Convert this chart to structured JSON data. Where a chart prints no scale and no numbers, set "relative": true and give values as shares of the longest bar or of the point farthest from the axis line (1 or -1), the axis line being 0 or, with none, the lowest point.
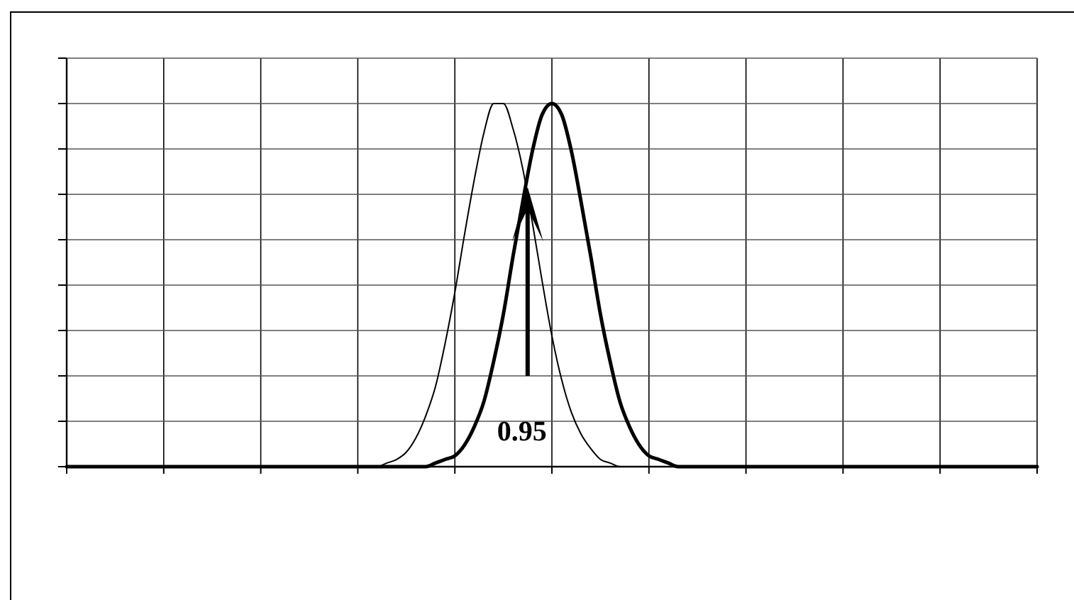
{
  "chart_data": {
    "type": "line",
    "relative": true,
    "grid": true,
    "categories": [
      null,
      null,
      null,
      null,
      null,
      null,
      null,
      null,
      null,
      null,
      null,
      null,
      null,
      null,
      null,
      null,
      null,
      null,
      null,
      null,
      null,
      null,
      null,
      null,
      null,
      null,
      null,
      null,
      null,
      null,
      null,
      null,
      null,
      null,
      null,
      null,
      null,
      null,
      null,
      null,
      null,
      null,
      null,
      null,
      null,
      null,
      null,
      null,
      null,
      null,
      null,
      null,
      null,
      null,
      null,
      null,
      null,
      null,
      null,
      null,
      null,
      null,
      null,
      null,
      null,
      null,
      null,
      null,
      null,
      null,
      null,
      null,
      null,
      null,
      null,
      null,
      null,
      null,
      null,
      null,
      null,
      null,
      null,
      null,
      null,
      null,
      null,
      null,
      null,
      null,
      null,
      null,
      null,
      null,
      null,
      null,
      null,
      null,
      null,
      null,
      null
    ],
    "series": [
      {
        "color": "#000000",
        "values": [
          0,
          0,
          0,
          0,
          0,
          0,
          0,
          0,
          0,
          0,
          0,
          0,
          0,
          0,
          0,
          0,
          0,
          0,
          0,
          0,
          0,
          0,
          0,
          0,
          0,
          0,
          0,
          0,
          0,
          0,
          0,
          0,
          0,
          0.01,
          0.02,
          0.04,
          0.08,
          0.14,
          0.22,
          0.34,
          0.48,
          0.64,
          0.79,
          0.92,
          1,
          1,
          0.93,
          0.82,
          0.67,
          0.51,
          0.36,
          0.24,
          0.15,
          0.09,
          0.05,
          0.02,
          0.01,
          0,
          0,
          0,
          0,
          0,
          0,
          0,
          0,
          0,
          0,
          0,
          0,
          0,
          0,
          0,
          0,
          0,
          0,
          0,
          0,
          0,
          0,
          0,
          0,
          0,
          0,
          0,
          0,
          0,
          0,
          0,
          0,
          0,
          0,
          0,
          0,
          0,
          0,
          0,
          0,
          0,
          0,
          0,
          0
        ]
      },
      {
        "color": "#000000",
        "values": [
          0,
          0,
          0,
          0,
          0,
          0,
          0,
          0,
          0,
          0,
          0,
          0,
          0,
          0,
          0,
          0,
          0,
          0,
          0,
          0,
          0,
          0,
          0,
          0,
          0,
          0,
          0,
          0,
          0,
          0,
          0,
          0,
          0,
          0,
          0,
          0,
          0,
          0,
          0.01,
          0.02,
          0.03,
          0.06,
          0.11,
          0.18,
          0.29,
          0.42,
          0.58,
          0.73,
          0.87,
          0.97,
          1,
          0.97,
          0.87,
          0.73,
          0.58,
          0.42,
          0.29,
          0.18,
          0.11,
          0.06,
          0.03,
          0.02,
          0.01,
          0,
          0,
          0,
          0,
          0,
          0,
          0,
          0,
          0,
          0,
          0,
          0,
          0,
          0,
          0,
          0,
          0,
          0,
          0,
          0,
          0,
          0,
          0,
          0,
          0,
          0,
          0,
          0,
          0,
          0,
          0,
          0,
          0,
          0,
          0,
          0,
          0,
          0
        ]
      }
    ],
    "annotations": [
      "0.95"
    ]
  }
}
